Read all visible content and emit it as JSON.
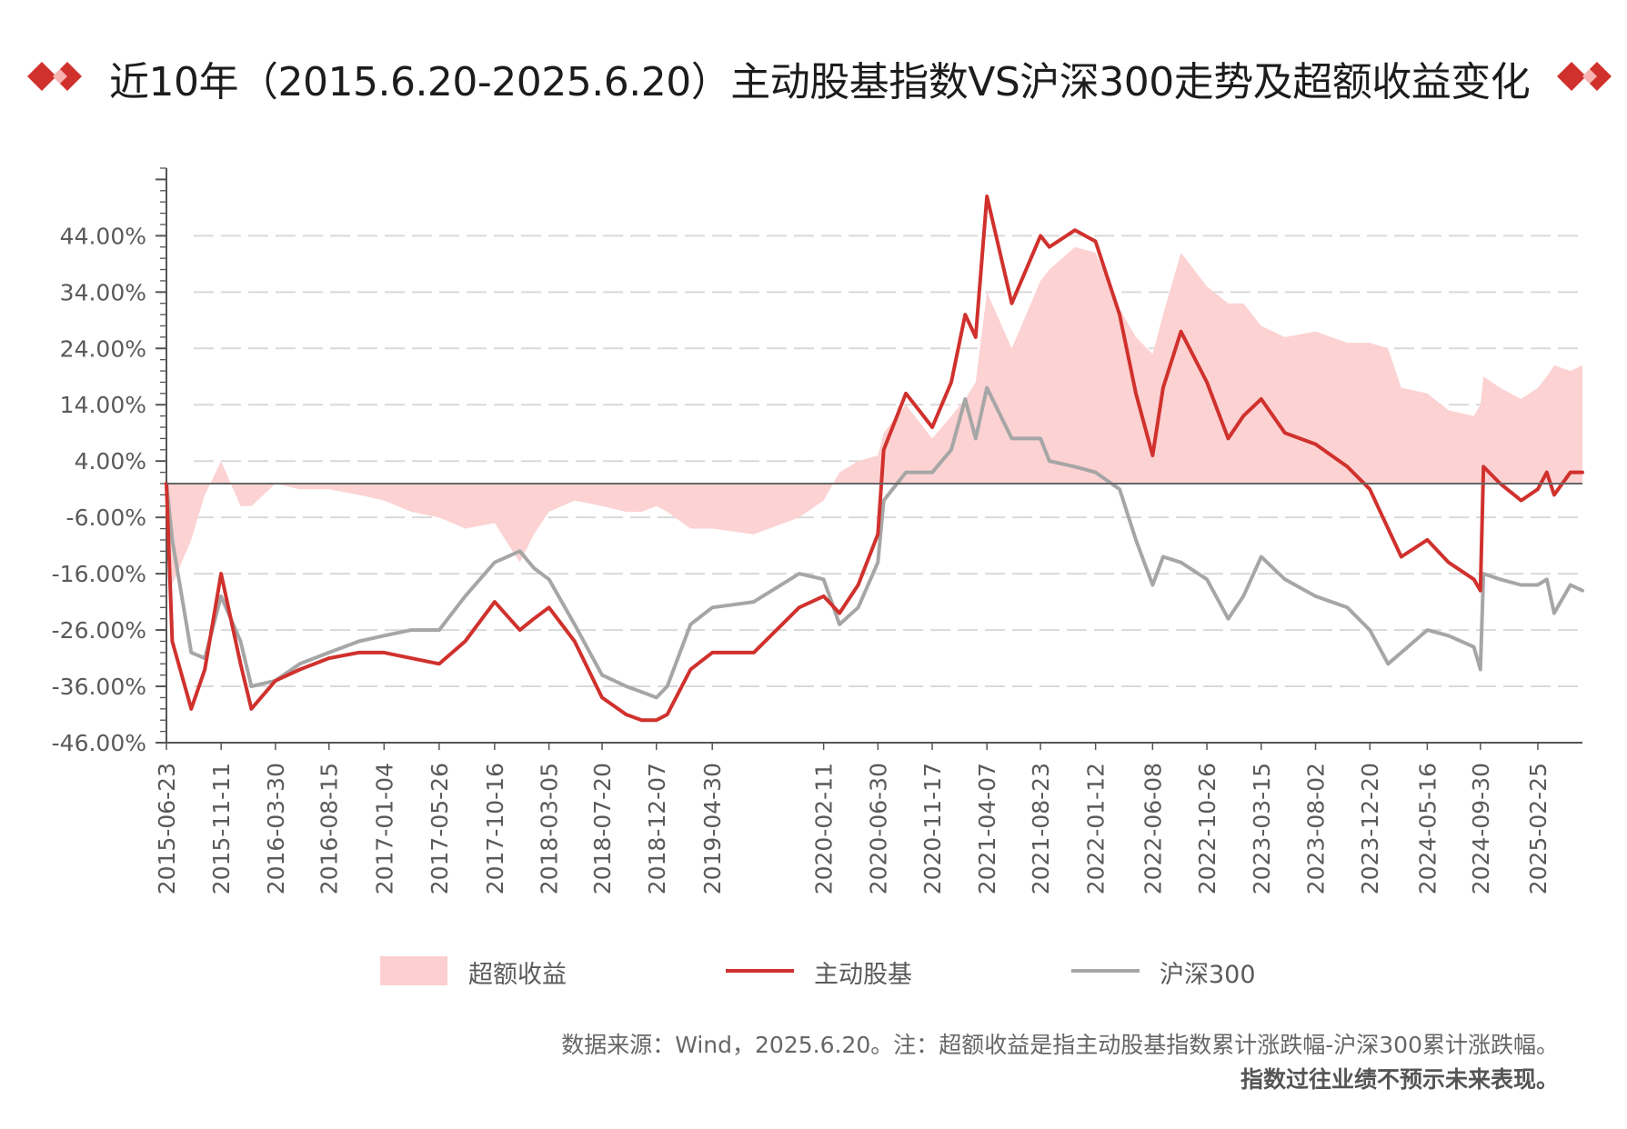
{
  "title": "近10年（2015.6.20-2025.6.20）主动股基指数VS沪深300走势及超额收益变化",
  "colors": {
    "accent": "#d0312d",
    "grey_series": "#a6a6a6",
    "excess_fill": "#fcd0d0",
    "diamond": "#d0312d"
  },
  "legend": {
    "excess": "超额收益",
    "active": "主动股基",
    "hs300": "沪深300"
  },
  "notes": {
    "source": "数据来源：Wind，2025.6.20。注：超额收益是指主动股基指数累计涨跌幅-沪深300累计涨跌幅。",
    "disclaimer": "指数过往业绩不预示未来表现。"
  },
  "chart_data": {
    "type": "line",
    "title": "近10年（2015.6.20-2025.6.20）主动股基指数VS沪深300走势及超额收益变化",
    "xlabel": "",
    "ylabel": "",
    "ylim": [
      -46,
      56
    ],
    "y_ticks": [
      "44.00%",
      "34.00%",
      "24.00%",
      "14.00%",
      "4.00%",
      "-6.00%",
      "-16.00%",
      "-26.00%",
      "-36.00%",
      "-46.00%"
    ],
    "y_tick_values": [
      44,
      34,
      24,
      14,
      4,
      -6,
      -16,
      -26,
      -36,
      -46
    ],
    "x_ticks": [
      "2015-06-23",
      "2015-11-11",
      "2016-03-30",
      "2016-08-15",
      "2017-01-04",
      "2017-05-26",
      "2017-10-16",
      "2018-03-05",
      "2018-07-20",
      "2018-12-07",
      "2019-04-30",
      "2020-02-11",
      "2020-06-30",
      "2020-11-17",
      "2021-04-07",
      "2021-08-23",
      "2022-01-12",
      "2022-06-08",
      "2022-10-26",
      "2023-03-15",
      "2023-08-02",
      "2023-12-20",
      "2024-05-16",
      "2024-09-30",
      "2025-02-25"
    ],
    "x_range": [
      "2015-06-23",
      "2025-06-20"
    ],
    "zero_line": 0,
    "grid": true,
    "legend_position": "bottom",
    "x": [
      "2015-06-23",
      "2015-07-08",
      "2015-08-26",
      "2015-09-30",
      "2015-11-11",
      "2015-12-31",
      "2016-01-28",
      "2016-03-30",
      "2016-06-01",
      "2016-08-15",
      "2016-10-31",
      "2017-01-04",
      "2017-03-15",
      "2017-05-26",
      "2017-08-01",
      "2017-10-16",
      "2017-12-20",
      "2018-01-25",
      "2018-03-05",
      "2018-05-10",
      "2018-07-20",
      "2018-09-20",
      "2018-10-30",
      "2018-12-07",
      "2019-01-04",
      "2019-03-05",
      "2019-04-30",
      "2019-08-15",
      "2019-12-10",
      "2020-02-11",
      "2020-03-23",
      "2020-05-10",
      "2020-06-30",
      "2020-07-15",
      "2020-09-10",
      "2020-11-17",
      "2021-01-05",
      "2021-02-10",
      "2021-03-09",
      "2021-04-07",
      "2021-06-10",
      "2021-08-23",
      "2021-09-15",
      "2021-11-20",
      "2022-01-12",
      "2022-03-15",
      "2022-04-26",
      "2022-06-08",
      "2022-07-05",
      "2022-08-20",
      "2022-10-26",
      "2022-12-20",
      "2023-01-28",
      "2023-03-15",
      "2023-05-15",
      "2023-08-02",
      "2023-10-23",
      "2023-12-20",
      "2024-02-05",
      "2024-03-10",
      "2024-05-16",
      "2024-07-10",
      "2024-09-13",
      "2024-09-30",
      "2024-10-08",
      "2024-11-20",
      "2025-01-13",
      "2025-02-25",
      "2025-03-20",
      "2025-04-08",
      "2025-05-20",
      "2025-06-20"
    ],
    "series": [
      {
        "name": "主动股基",
        "color": "#d0312d",
        "values": [
          0,
          -28,
          -40,
          -33,
          -16,
          -32,
          -40,
          -35,
          -33,
          -31,
          -30,
          -30,
          -31,
          -32,
          -28,
          -21,
          -26,
          -24,
          -22,
          -28,
          -38,
          -41,
          -42,
          -42,
          -41,
          -33,
          -30,
          -30,
          -22,
          -20,
          -23,
          -18,
          -9,
          6,
          16,
          10,
          18,
          30,
          26,
          51,
          32,
          44,
          42,
          45,
          43,
          30,
          16,
          5,
          17,
          27,
          18,
          8,
          12,
          15,
          9,
          7,
          3,
          -1,
          -8,
          -13,
          -10,
          -14,
          -17,
          -19,
          3,
          0,
          -3,
          -1,
          2,
          -2,
          2,
          2
        ]
      },
      {
        "name": "沪深300",
        "color": "#a6a6a6",
        "values": [
          0,
          -10,
          -30,
          -31,
          -20,
          -28,
          -36,
          -35,
          -32,
          -30,
          -28,
          -27,
          -26,
          -26,
          -20,
          -14,
          -12,
          -15,
          -17,
          -25,
          -34,
          -36,
          -37,
          -38,
          -36,
          -25,
          -22,
          -21,
          -16,
          -17,
          -25,
          -22,
          -14,
          -3,
          2,
          2,
          6,
          15,
          8,
          17,
          8,
          8,
          4,
          3,
          2,
          -1,
          -10,
          -18,
          -13,
          -14,
          -17,
          -24,
          -20,
          -13,
          -17,
          -20,
          -22,
          -26,
          -32,
          -30,
          -26,
          -27,
          -29,
          -33,
          -16,
          -17,
          -18,
          -18,
          -17,
          -23,
          -18,
          -19
        ]
      },
      {
        "name": "超额收益",
        "color": "#fcd0d0",
        "values": [
          0,
          -18,
          -10,
          -2,
          4,
          -4,
          -4,
          0,
          -1,
          -1,
          -2,
          -3,
          -5,
          -6,
          -8,
          -7,
          -14,
          -9,
          -5,
          -3,
          -4,
          -5,
          -5,
          -4,
          -5,
          -8,
          -8,
          -9,
          -6,
          -3,
          2,
          4,
          5,
          9,
          14,
          8,
          12,
          15,
          18,
          34,
          24,
          36,
          38,
          42,
          41,
          31,
          26,
          23,
          30,
          41,
          35,
          32,
          32,
          28,
          26,
          27,
          25,
          25,
          24,
          17,
          16,
          13,
          12,
          14,
          19,
          17,
          15,
          17,
          19,
          21,
          20,
          21
        ]
      }
    ]
  }
}
